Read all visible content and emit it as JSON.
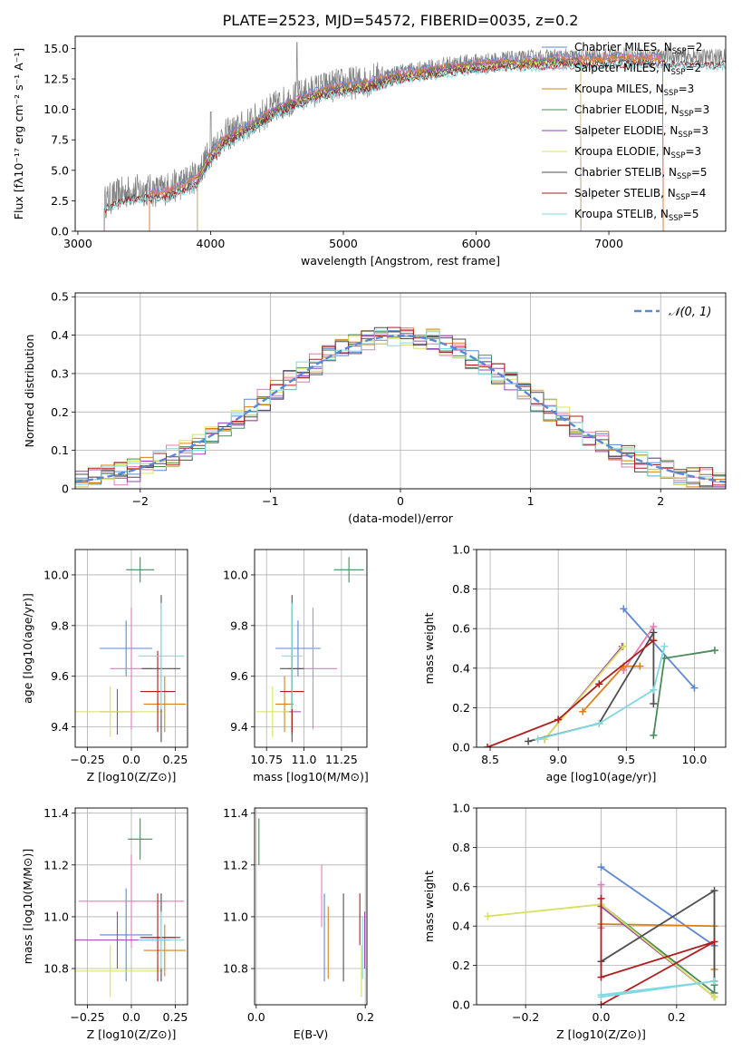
{
  "figure": {
    "title": "PLATE=2523, MJD=54572, FIBERID=0035, z=0.2"
  },
  "colors": {
    "Chabrier MILES": "#5b87d4",
    "Salpeter MILES": "#e67ab4",
    "Kroupa MILES": "#d9801a",
    "Chabrier ELODIE": "#4a8a5a",
    "Salpeter ELODIE": "#9a40b0",
    "Kroupa ELODIE": "#d8e060",
    "Chabrier STELIB": "#4f4f4f",
    "Salpeter STELIB": "#b01d1d",
    "Kroupa STELIB": "#80d8e0",
    "observed": "#808080",
    "gaussian": "#5b87d4",
    "grid": "#b0b0b0"
  },
  "chart_data": [
    {
      "id": "spectrum",
      "type": "line",
      "title": "PLATE=2523, MJD=54572, FIBERID=0035, z=0.2",
      "xlabel": "wavelength [Angstrom, rest frame]",
      "ylabel": "Flux [fλ10⁻¹⁷ erg cm⁻² s⁻¹ A⁻¹]",
      "xlim": [
        2980,
        7880
      ],
      "ylim": [
        0,
        16
      ],
      "xticks": [
        3000,
        4000,
        5000,
        6000,
        7000
      ],
      "yticks": [
        0.0,
        2.5,
        5.0,
        7.5,
        10.0,
        12.5,
        15.0
      ],
      "grid": false,
      "legend_position": "right",
      "observed_continuum": {
        "x": [
          3200,
          3300,
          3400,
          3500,
          3600,
          3700,
          3800,
          3900,
          4000,
          4100,
          4200,
          4300,
          4400,
          4500,
          4600,
          4700,
          4800,
          4900,
          5000,
          5100,
          5200,
          5300,
          5400,
          5500,
          5600,
          5700,
          5800,
          5900,
          6000,
          6100,
          6200,
          6300,
          6400,
          6500,
          6600,
          6700,
          6800,
          6900,
          7000,
          7100,
          7200,
          7300,
          7400,
          7500,
          7600,
          7700
        ],
        "y": [
          2.4,
          3.0,
          3.3,
          3.4,
          3.3,
          3.6,
          4.0,
          4.6,
          6.5,
          7.8,
          8.3,
          8.9,
          9.6,
          10.3,
          10.8,
          11.2,
          11.6,
          11.9,
          12.1,
          12.2,
          12.4,
          12.7,
          13.0,
          13.2,
          13.3,
          13.5,
          13.7,
          13.8,
          13.9,
          14.0,
          14.1,
          14.1,
          14.2,
          14.2,
          14.3,
          14.3,
          14.3,
          14.3,
          14.4,
          14.4,
          14.4,
          14.4,
          14.4,
          14.4,
          14.3,
          14.3
        ]
      },
      "series": [
        {
          "name": "Chabrier MILES",
          "legend": "Chabrier MILES, N",
          "nssp": "=2",
          "xstart": 3540,
          "xend": 7410
        },
        {
          "name": "Salpeter MILES",
          "legend": "Salpeter MILES, N",
          "nssp": "=2",
          "xstart": 3540,
          "xend": 7410
        },
        {
          "name": "Kroupa MILES",
          "legend": "Kroupa MILES, N",
          "nssp": "=3",
          "xstart": 3540,
          "xend": 7410
        },
        {
          "name": "Chabrier ELODIE",
          "legend": "Chabrier ELODIE, N",
          "nssp": "=3",
          "xstart": 3900,
          "xend": 6790
        },
        {
          "name": "Salpeter ELODIE",
          "legend": "Salpeter ELODIE, N",
          "nssp": "=3",
          "xstart": 3900,
          "xend": 6790
        },
        {
          "name": "Kroupa ELODIE",
          "legend": "Kroupa ELODIE, N",
          "nssp": "=3",
          "xstart": 3900,
          "xend": 6790
        },
        {
          "name": "Chabrier STELIB",
          "legend": "Chabrier STELIB, N",
          "nssp": "=5",
          "xstart": 3200,
          "xend": 7880
        },
        {
          "name": "Salpeter STELIB",
          "legend": "Salpeter STELIB, N",
          "nssp": "=4",
          "xstart": 3200,
          "xend": 7880
        },
        {
          "name": "Kroupa STELIB",
          "legend": "Kroupa STELIB, N",
          "nssp": "=5",
          "xstart": 3200,
          "xend": 7880
        }
      ]
    },
    {
      "id": "residuals",
      "type": "line",
      "xlabel": "(data-model)/error",
      "ylabel": "Normed distribution",
      "xlim": [
        -2.5,
        2.5
      ],
      "ylim": [
        0,
        0.51
      ],
      "xticks": [
        -2,
        -1,
        0,
        1,
        2
      ],
      "yticks": [
        0.0,
        0.1,
        0.2,
        0.3,
        0.4,
        0.5
      ],
      "grid": true,
      "legend_position": "top-right",
      "legend_label": "𝒩(0, 1)",
      "bin_width": 0.1,
      "bin_start": -2.5
    },
    {
      "id": "age_vs_Z",
      "type": "scatter",
      "xlabel": "Z [log10(Z/Z⊙)]",
      "ylabel": "age  [log10(age/yr)]",
      "xlim": [
        -0.32,
        0.32
      ],
      "ylim": [
        9.32,
        10.1
      ],
      "xticks": [
        -0.25,
        0.0,
        0.25
      ],
      "yticks": [
        9.4,
        9.6,
        9.8,
        10.0
      ],
      "grid": true,
      "points": [
        {
          "name": "Chabrier MILES",
          "x": -0.03,
          "y": 9.71,
          "xerr": 0.15,
          "yerr": 0.11
        },
        {
          "name": "Salpeter MILES",
          "x": 0.0,
          "y": 9.63,
          "xerr": 0.12,
          "yerr": 0.24
        },
        {
          "name": "Kroupa MILES",
          "x": 0.19,
          "y": 9.49,
          "xerr": 0.12,
          "yerr": 0.11
        },
        {
          "name": "Chabrier ELODIE",
          "x": 0.05,
          "y": 10.02,
          "xerr": 0.08,
          "yerr": 0.05
        },
        {
          "name": "Salpeter ELODIE",
          "x": -0.08,
          "y": 9.46,
          "xerr": 0.1,
          "yerr": 0.09
        },
        {
          "name": "Kroupa ELODIE",
          "x": -0.12,
          "y": 9.46,
          "xerr": 0.3,
          "yerr": 0.1
        },
        {
          "name": "Chabrier STELIB",
          "x": 0.17,
          "y": 9.63,
          "xerr": 0.11,
          "yerr": 0.29
        },
        {
          "name": "Salpeter STELIB",
          "x": 0.15,
          "y": 9.54,
          "xerr": 0.1,
          "yerr": 0.16
        },
        {
          "name": "Kroupa STELIB",
          "x": 0.17,
          "y": 9.68,
          "xerr": 0.13,
          "yerr": 0.21
        }
      ]
    },
    {
      "id": "age_vs_mass",
      "type": "scatter",
      "xlabel": "mass [log10(M/M⊙)]",
      "ylabel": "",
      "xlim": [
        10.67,
        11.42
      ],
      "ylim": [
        9.32,
        10.1
      ],
      "xticks": [
        10.75,
        11.0,
        11.25
      ],
      "yticks": [
        9.4,
        9.6,
        9.8,
        10.0
      ],
      "grid": true,
      "points": [
        {
          "name": "Chabrier MILES",
          "x": 10.96,
          "y": 9.71,
          "xerr": 0.15,
          "yerr": 0.11
        },
        {
          "name": "Salpeter MILES",
          "x": 11.06,
          "y": 9.63,
          "xerr": 0.16,
          "yerr": 0.24
        },
        {
          "name": "Kroupa MILES",
          "x": 10.87,
          "y": 9.49,
          "xerr": 0.06,
          "yerr": 0.11
        },
        {
          "name": "Chabrier ELODIE",
          "x": 11.3,
          "y": 10.02,
          "xerr": 0.1,
          "yerr": 0.05
        },
        {
          "name": "Salpeter ELODIE",
          "x": 10.92,
          "y": 9.46,
          "xerr": 0.06,
          "yerr": 0.09
        },
        {
          "name": "Kroupa ELODIE",
          "x": 10.79,
          "y": 9.46,
          "xerr": 0.11,
          "yerr": 0.1
        },
        {
          "name": "Chabrier STELIB",
          "x": 10.92,
          "y": 9.63,
          "xerr": 0.08,
          "yerr": 0.29
        },
        {
          "name": "Salpeter STELIB",
          "x": 10.92,
          "y": 9.54,
          "xerr": 0.08,
          "yerr": 0.16
        },
        {
          "name": "Kroupa STELIB",
          "x": 10.92,
          "y": 9.68,
          "xerr": 0.07,
          "yerr": 0.21
        }
      ]
    },
    {
      "id": "mass_vs_Z",
      "type": "scatter",
      "xlabel": "Z [log10(Z/Z⊙)]",
      "ylabel": "mass [log10(M/M⊙)]",
      "xlim": [
        -0.32,
        0.32
      ],
      "ylim": [
        10.66,
        11.42
      ],
      "xticks": [
        -0.25,
        0.0,
        0.25
      ],
      "yticks": [
        10.8,
        11.0,
        11.2,
        11.4
      ],
      "grid": true,
      "points": [
        {
          "name": "Chabrier MILES",
          "x": -0.03,
          "y": 10.93,
          "xerr": 0.15,
          "yerr": 0.18
        },
        {
          "name": "Salpeter MILES",
          "x": 0.0,
          "y": 11.06,
          "xerr": 0.3,
          "yerr": 0.18
        },
        {
          "name": "Kroupa MILES",
          "x": 0.19,
          "y": 10.87,
          "xerr": 0.12,
          "yerr": 0.1
        },
        {
          "name": "Chabrier ELODIE",
          "x": 0.05,
          "y": 11.3,
          "xerr": 0.07,
          "yerr": 0.08
        },
        {
          "name": "Salpeter ELODIE",
          "x": -0.08,
          "y": 10.91,
          "xerr": 0.3,
          "yerr": 0.11
        },
        {
          "name": "Kroupa ELODIE",
          "x": -0.12,
          "y": 10.79,
          "xerr": 0.3,
          "yerr": 0.1
        },
        {
          "name": "Chabrier STELIB",
          "x": 0.17,
          "y": 10.92,
          "xerr": 0.11,
          "yerr": 0.17
        },
        {
          "name": "Salpeter STELIB",
          "x": 0.15,
          "y": 10.92,
          "xerr": 0.1,
          "yerr": 0.17
        },
        {
          "name": "Kroupa STELIB",
          "x": 0.17,
          "y": 10.91,
          "xerr": 0.13,
          "yerr": 0.11
        }
      ]
    },
    {
      "id": "mass_vs_EBV",
      "type": "scatter",
      "xlabel": "E(B-V)",
      "ylabel": "",
      "xlim": [
        -0.003,
        0.203
      ],
      "ylim": [
        10.66,
        11.42
      ],
      "xticks": [
        0.0,
        0.2
      ],
      "yticks": [
        10.8,
        11.0,
        11.2,
        11.4
      ],
      "grid": true,
      "points": [
        {
          "name": "Chabrier MILES",
          "x": 0.125,
          "y": 10.92,
          "xerr": 0,
          "yerr": 0.17
        },
        {
          "name": "Salpeter MILES",
          "x": 0.12,
          "y": 11.08,
          "xerr": 0,
          "yerr": 0.12
        },
        {
          "name": "Kroupa MILES",
          "x": 0.132,
          "y": 10.9,
          "xerr": 0,
          "yerr": 0.14
        },
        {
          "name": "Chabrier ELODIE",
          "x": 0.005,
          "y": 11.29,
          "xerr": 0,
          "yerr": 0.09
        },
        {
          "name": "Salpeter ELODIE",
          "x": 0.199,
          "y": 10.91,
          "xerr": 0,
          "yerr": 0.11
        },
        {
          "name": "Kroupa ELODIE",
          "x": 0.193,
          "y": 10.79,
          "xerr": 0,
          "yerr": 0.1
        },
        {
          "name": "Chabrier STELIB",
          "x": 0.16,
          "y": 10.92,
          "xerr": 0,
          "yerr": 0.17
        },
        {
          "name": "Salpeter STELIB",
          "x": 0.19,
          "y": 10.99,
          "xerr": 0,
          "yerr": 0.1
        },
        {
          "name": "Kroupa STELIB",
          "x": 0.195,
          "y": 10.88,
          "xerr": 0,
          "yerr": 0.12
        }
      ]
    },
    {
      "id": "weight_vs_age",
      "type": "line",
      "xlabel": "age  [log10(age/yr)]",
      "ylabel": "mass weight",
      "xlim": [
        8.4,
        10.23
      ],
      "ylim": [
        0,
        1.0
      ],
      "xticks": [
        8.5,
        9.0,
        9.5,
        10.0
      ],
      "yticks": [
        0.0,
        0.2,
        0.4,
        0.6,
        0.8,
        1.0
      ],
      "grid": true,
      "series": [
        {
          "name": "Chabrier MILES",
          "x": [
            9.48,
            10.0
          ],
          "y": [
            0.7,
            0.3
          ]
        },
        {
          "name": "Salpeter MILES",
          "x": [
            9.48,
            9.7
          ],
          "y": [
            0.39,
            0.61
          ]
        },
        {
          "name": "Kroupa MILES",
          "x": [
            9.18,
            9.48,
            9.6
          ],
          "y": [
            0.18,
            0.41,
            0.41
          ]
        },
        {
          "name": "Chabrier ELODIE",
          "x": [
            9.7,
            9.78,
            10.15
          ],
          "y": [
            0.06,
            0.45,
            0.49
          ]
        },
        {
          "name": "Salpeter ELODIE",
          "x": [
            8.9,
            9.47
          ],
          "y": [
            0.04,
            0.51
          ]
        },
        {
          "name": "Kroupa ELODIE",
          "x": [
            8.9,
            9.48
          ],
          "y": [
            0.04,
            0.51
          ]
        },
        {
          "name": "Chabrier STELIB",
          "x": [
            8.78,
            9.3,
            9.7,
            9.7
          ],
          "y": [
            0.03,
            0.12,
            0.58,
            0.22
          ]
        },
        {
          "name": "Salpeter STELIB",
          "x": [
            8.48,
            9.0,
            9.3,
            9.7
          ],
          "y": [
            0.0,
            0.14,
            0.32,
            0.54
          ]
        },
        {
          "name": "Kroupa STELIB",
          "x": [
            8.85,
            9.3,
            9.7,
            9.78
          ],
          "y": [
            0.04,
            0.12,
            0.29,
            0.51
          ]
        }
      ]
    },
    {
      "id": "weight_vs_Z",
      "type": "line",
      "xlabel": "Z [log10(Z/Z⊙)]",
      "ylabel": "mass weight",
      "xlim": [
        -0.33,
        0.33
      ],
      "ylim": [
        0,
        1.0
      ],
      "xticks": [
        -0.2,
        0.0,
        0.2
      ],
      "yticks": [
        0.0,
        0.2,
        0.4,
        0.6,
        0.8,
        1.0
      ],
      "grid": true,
      "series": [
        {
          "name": "Chabrier MILES",
          "x": [
            0.0,
            0.3
          ],
          "y": [
            0.7,
            0.3
          ]
        },
        {
          "name": "Salpeter MILES",
          "x": [
            0.0,
            0.0
          ],
          "y": [
            0.39,
            0.61
          ]
        },
        {
          "name": "Kroupa MILES",
          "x": [
            0.0,
            0.3,
            0.3
          ],
          "y": [
            0.41,
            0.4,
            0.18
          ]
        },
        {
          "name": "Chabrier ELODIE",
          "x": [
            0.0,
            0.3,
            0.3
          ],
          "y": [
            0.51,
            0.06,
            0.1
          ]
        },
        {
          "name": "Salpeter ELODIE",
          "x": [
            0.0,
            0.3
          ],
          "y": [
            0.5,
            0.04
          ]
        },
        {
          "name": "Kroupa ELODIE",
          "x": [
            -0.3,
            0.0,
            0.3
          ],
          "y": [
            0.45,
            0.51,
            0.04
          ]
        },
        {
          "name": "Chabrier STELIB",
          "x": [
            0.0,
            0.3,
            0.3
          ],
          "y": [
            0.22,
            0.58,
            0.12
          ]
        },
        {
          "name": "Salpeter STELIB",
          "x": [
            0.0,
            0.3,
            0.0,
            0.0
          ],
          "y": [
            0.0,
            0.32,
            0.14,
            0.54
          ]
        },
        {
          "name": "Kroupa STELIB",
          "x": [
            0.0,
            0.3,
            0.0
          ],
          "y": [
            0.04,
            0.12,
            0.05
          ]
        }
      ]
    }
  ]
}
